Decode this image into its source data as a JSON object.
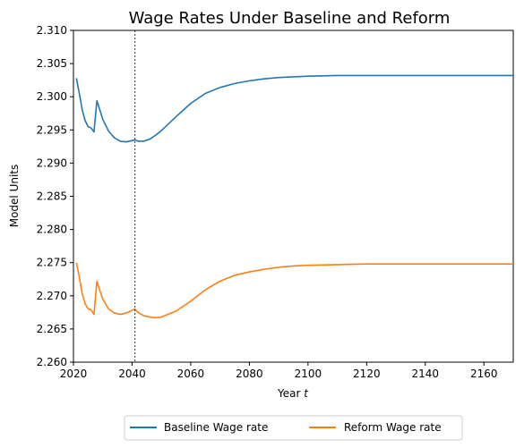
{
  "chart_data": {
    "type": "line",
    "title": "Wage Rates Under Baseline and Reform",
    "xlabel": "Year ",
    "xlabel_italic": "t",
    "ylabel": "Model Units",
    "xlim": [
      2020,
      2170
    ],
    "ylim": [
      2.26,
      2.31
    ],
    "xticks": [
      2020,
      2040,
      2060,
      2080,
      2100,
      2120,
      2140,
      2160
    ],
    "yticks": [
      "2.260",
      "2.265",
      "2.270",
      "2.275",
      "2.280",
      "2.285",
      "2.290",
      "2.295",
      "2.300",
      "2.305",
      "2.310"
    ],
    "vline_x": 2041,
    "legend_position": "below-center",
    "series": [
      {
        "name": "Baseline Wage rate",
        "color": "#1f77b4",
        "points": [
          [
            2021,
            2.3028
          ],
          [
            2022,
            2.3005
          ],
          [
            2023,
            2.298
          ],
          [
            2024,
            2.2964
          ],
          [
            2025,
            2.2955
          ],
          [
            2026,
            2.2953
          ],
          [
            2027,
            2.2947
          ],
          [
            2028,
            2.2994
          ],
          [
            2029,
            2.298
          ],
          [
            2030,
            2.2966
          ],
          [
            2032,
            2.2948
          ],
          [
            2034,
            2.2938
          ],
          [
            2036,
            2.2933
          ],
          [
            2038,
            2.2932
          ],
          [
            2040,
            2.2934
          ],
          [
            2041,
            2.2935
          ],
          [
            2042,
            2.2933
          ],
          [
            2044,
            2.2933
          ],
          [
            2046,
            2.2936
          ],
          [
            2048,
            2.2942
          ],
          [
            2050,
            2.2949
          ],
          [
            2055,
            2.297
          ],
          [
            2060,
            2.299
          ],
          [
            2065,
            2.3005
          ],
          [
            2070,
            2.3014
          ],
          [
            2075,
            2.302
          ],
          [
            2080,
            2.3024
          ],
          [
            2085,
            2.3027
          ],
          [
            2090,
            2.3029
          ],
          [
            2095,
            2.303
          ],
          [
            2100,
            2.3031
          ],
          [
            2110,
            2.3032
          ],
          [
            2120,
            2.3032
          ],
          [
            2140,
            2.3032
          ],
          [
            2160,
            2.3032
          ],
          [
            2170,
            2.3032
          ]
        ]
      },
      {
        "name": "Reform Wage rate",
        "color": "#ff7f0e",
        "points": [
          [
            2021,
            2.275
          ],
          [
            2022,
            2.2728
          ],
          [
            2023,
            2.2703
          ],
          [
            2024,
            2.2688
          ],
          [
            2025,
            2.268
          ],
          [
            2026,
            2.2679
          ],
          [
            2027,
            2.2672
          ],
          [
            2028,
            2.2722
          ],
          [
            2029,
            2.2708
          ],
          [
            2030,
            2.2695
          ],
          [
            2032,
            2.268
          ],
          [
            2034,
            2.2674
          ],
          [
            2036,
            2.2672
          ],
          [
            2038,
            2.2674
          ],
          [
            2040,
            2.2678
          ],
          [
            2041,
            2.268
          ],
          [
            2042,
            2.2675
          ],
          [
            2044,
            2.267
          ],
          [
            2046,
            2.2668
          ],
          [
            2048,
            2.2667
          ],
          [
            2050,
            2.2668
          ],
          [
            2055,
            2.2677
          ],
          [
            2060,
            2.2692
          ],
          [
            2065,
            2.2709
          ],
          [
            2070,
            2.2722
          ],
          [
            2075,
            2.2731
          ],
          [
            2080,
            2.2736
          ],
          [
            2085,
            2.274
          ],
          [
            2090,
            2.2743
          ],
          [
            2095,
            2.2745
          ],
          [
            2100,
            2.2746
          ],
          [
            2110,
            2.2747
          ],
          [
            2120,
            2.2748
          ],
          [
            2140,
            2.2748
          ],
          [
            2160,
            2.2748
          ],
          [
            2170,
            2.2748
          ]
        ]
      }
    ]
  }
}
